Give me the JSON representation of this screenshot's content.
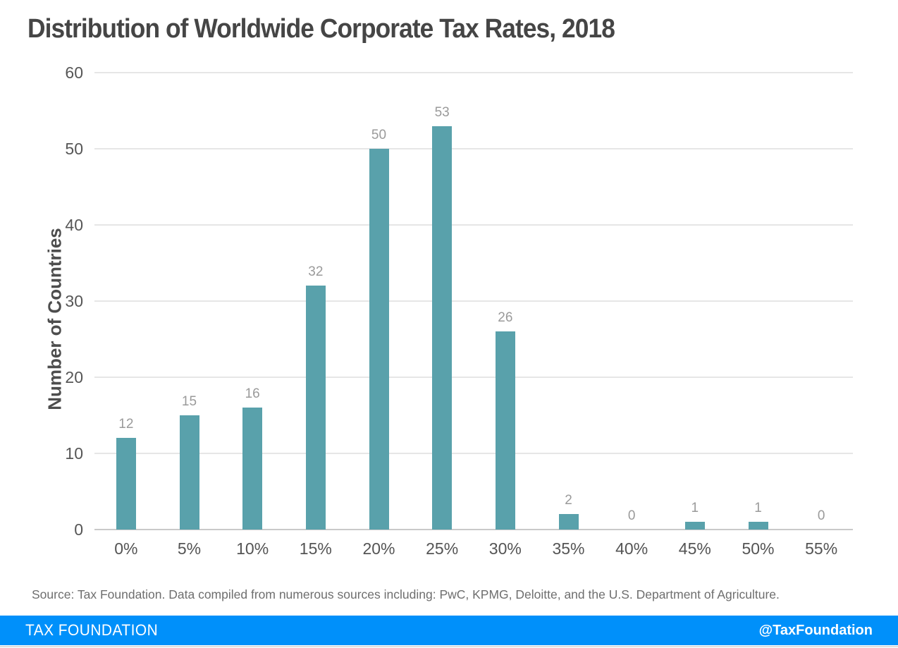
{
  "title": "Distribution of Worldwide Corporate Tax Rates, 2018",
  "chart_data": {
    "type": "bar",
    "categories": [
      "0%",
      "5%",
      "10%",
      "15%",
      "20%",
      "25%",
      "30%",
      "35%",
      "40%",
      "45%",
      "50%",
      "55%"
    ],
    "values": [
      12,
      15,
      16,
      32,
      50,
      53,
      26,
      2,
      0,
      1,
      1,
      0
    ],
    "title": "Distribution of Worldwide Corporate Tax Rates, 2018",
    "xlabel": "",
    "ylabel": "Number of Countries",
    "ylim": [
      0,
      60
    ],
    "yticks": [
      0,
      10,
      20,
      30,
      40,
      50,
      60
    ],
    "grid": true,
    "legend": "none",
    "bar_color": "#59A1AB",
    "value_label_color": "#9a9a9a",
    "gridline_color": "#e6e6e6",
    "axis_line_color": "#c9c9c9"
  },
  "source_note": "Source: Tax Foundation. Data compiled from numerous sources including: PwC, KPMG, Deloitte, and the U.S. Department of Agriculture.",
  "footer": {
    "brand": "TAX FOUNDATION",
    "handle": "@TaxFoundation",
    "bg_color": "#0090FA",
    "text_color": "#ffffff"
  }
}
